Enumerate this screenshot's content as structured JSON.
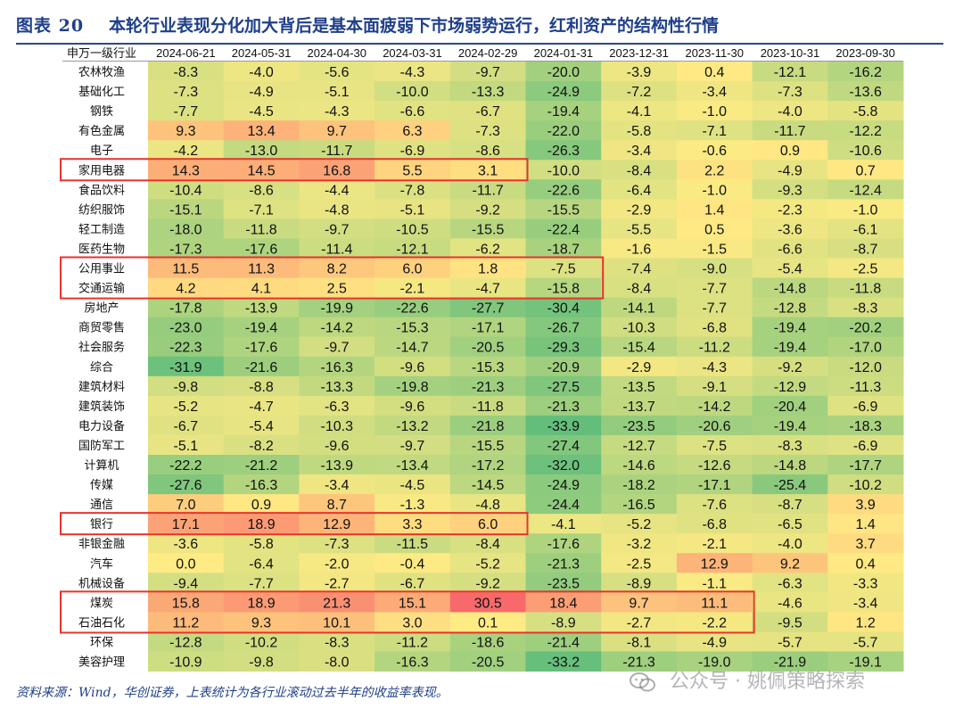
{
  "figure": {
    "label": "图表 20",
    "title": "本轮行业表现分化加大背后是基本面疲弱下市场弱势运行，红利资产的结构性行情"
  },
  "source_note": "资料来源：Wind，华创证券，上表统计为各行业滚动过去半年的收益率表现。",
  "watermark": {
    "text": "公众号 · 姚佩策略探索",
    "icon": "wechat-icon"
  },
  "chart_data": {
    "type": "table",
    "row_header_label": "申万一级行业",
    "columns": [
      "2024-06-21",
      "2024-05-31",
      "2024-04-30",
      "2024-03-31",
      "2024-02-29",
      "2024-01-31",
      "2023-12-31",
      "2023-11-30",
      "2023-10-31",
      "2023-09-30"
    ],
    "rows": [
      {
        "name": "农林牧渔",
        "values": [
          "-8.3",
          "-4.0",
          "-5.6",
          "-4.3",
          "-9.7",
          "-20.0",
          "-3.9",
          "0.4",
          "-12.1",
          "-16.2"
        ]
      },
      {
        "name": "基础化工",
        "values": [
          "-7.3",
          "-4.9",
          "-5.1",
          "-10.0",
          "-13.3",
          "-24.9",
          "-7.2",
          "-3.4",
          "-7.3",
          "-13.6"
        ]
      },
      {
        "name": "钢铁",
        "values": [
          "-7.7",
          "-4.5",
          "-4.3",
          "-6.6",
          "-6.7",
          "-19.4",
          "-4.1",
          "-1.0",
          "-4.0",
          "-5.8"
        ]
      },
      {
        "name": "有色金属",
        "values": [
          "9.3",
          "13.4",
          "9.7",
          "6.3",
          "-7.3",
          "-22.0",
          "-5.8",
          "-7.1",
          "-11.7",
          "-12.2"
        ]
      },
      {
        "name": "电子",
        "values": [
          "-4.2",
          "-13.0",
          "-11.7",
          "-6.9",
          "-8.6",
          "-26.3",
          "-3.4",
          "-0.6",
          "0.9",
          "-10.6"
        ]
      },
      {
        "name": "家用电器",
        "values": [
          "14.3",
          "14.5",
          "16.8",
          "5.5",
          "3.1",
          "-10.0",
          "-8.4",
          "2.2",
          "-4.9",
          "0.7"
        ]
      },
      {
        "name": "食品饮料",
        "values": [
          "-10.4",
          "-8.6",
          "-4.4",
          "-7.8",
          "-11.7",
          "-22.6",
          "-6.4",
          "-1.0",
          "-9.3",
          "-12.4"
        ]
      },
      {
        "name": "纺织服饰",
        "values": [
          "-15.1",
          "-7.1",
          "-4.8",
          "-5.1",
          "-9.2",
          "-15.5",
          "-2.9",
          "1.4",
          "-2.3",
          "-1.0"
        ]
      },
      {
        "name": "轻工制造",
        "values": [
          "-18.0",
          "-11.8",
          "-9.7",
          "-10.5",
          "-15.5",
          "-22.4",
          "-5.5",
          "0.5",
          "-3.6",
          "-6.1"
        ]
      },
      {
        "name": "医药生物",
        "values": [
          "-17.3",
          "-17.6",
          "-11.4",
          "-12.1",
          "-6.2",
          "-18.7",
          "-1.6",
          "-1.5",
          "-6.6",
          "-8.7"
        ]
      },
      {
        "name": "公用事业",
        "values": [
          "11.5",
          "11.3",
          "8.2",
          "6.0",
          "1.8",
          "-7.5",
          "-7.4",
          "-9.0",
          "-5.4",
          "-2.5"
        ]
      },
      {
        "name": "交通运输",
        "values": [
          "4.2",
          "4.1",
          "2.5",
          "-2.1",
          "-4.7",
          "-15.8",
          "-8.4",
          "-7.7",
          "-14.8",
          "-11.8"
        ]
      },
      {
        "name": "房地产",
        "values": [
          "-17.8",
          "-13.9",
          "-19.9",
          "-22.6",
          "-27.7",
          "-30.4",
          "-14.1",
          "-7.7",
          "-12.8",
          "-8.3"
        ]
      },
      {
        "name": "商贸零售",
        "values": [
          "-23.0",
          "-19.4",
          "-14.2",
          "-15.3",
          "-17.1",
          "-26.7",
          "-10.3",
          "-6.8",
          "-19.4",
          "-20.2"
        ]
      },
      {
        "name": "社会服务",
        "values": [
          "-22.3",
          "-17.6",
          "-9.7",
          "-14.7",
          "-20.5",
          "-29.3",
          "-15.4",
          "-11.2",
          "-19.4",
          "-17.0"
        ]
      },
      {
        "name": "综合",
        "values": [
          "-31.9",
          "-21.6",
          "-16.3",
          "-9.6",
          "-15.3",
          "-20.9",
          "-2.9",
          "-4.3",
          "-9.2",
          "-12.0"
        ]
      },
      {
        "name": "建筑材料",
        "values": [
          "-9.8",
          "-8.8",
          "-13.3",
          "-19.8",
          "-21.3",
          "-27.5",
          "-13.5",
          "-9.1",
          "-12.9",
          "-11.3"
        ]
      },
      {
        "name": "建筑装饰",
        "values": [
          "-5.2",
          "-4.7",
          "-6.3",
          "-9.6",
          "-11.8",
          "-21.3",
          "-13.7",
          "-14.2",
          "-20.4",
          "-6.9"
        ]
      },
      {
        "name": "电力设备",
        "values": [
          "-6.7",
          "-5.4",
          "-10.3",
          "-13.2",
          "-21.8",
          "-33.9",
          "-23.5",
          "-20.6",
          "-19.4",
          "-18.3"
        ]
      },
      {
        "name": "国防军工",
        "values": [
          "-5.1",
          "-8.2",
          "-9.6",
          "-9.7",
          "-15.5",
          "-27.4",
          "-12.7",
          "-7.5",
          "-8.3",
          "-6.9"
        ]
      },
      {
        "name": "计算机",
        "values": [
          "-22.2",
          "-21.2",
          "-13.9",
          "-13.4",
          "-17.2",
          "-32.0",
          "-14.6",
          "-12.6",
          "-14.8",
          "-17.7"
        ]
      },
      {
        "name": "传媒",
        "values": [
          "-27.6",
          "-16.3",
          "-3.4",
          "-4.5",
          "-14.5",
          "-24.9",
          "-18.2",
          "-17.1",
          "-25.4",
          "-10.2"
        ]
      },
      {
        "name": "通信",
        "values": [
          "7.0",
          "0.9",
          "8.7",
          "-1.3",
          "-4.8",
          "-24.4",
          "-16.5",
          "-7.6",
          "-8.7",
          "3.9"
        ]
      },
      {
        "name": "银行",
        "values": [
          "17.1",
          "18.9",
          "12.9",
          "3.3",
          "6.0",
          "-4.1",
          "-5.2",
          "-6.8",
          "-6.5",
          "1.4"
        ]
      },
      {
        "name": "非银金融",
        "values": [
          "-3.6",
          "-5.8",
          "-7.3",
          "-11.5",
          "-8.4",
          "-17.6",
          "-3.2",
          "-2.1",
          "-4.0",
          "3.7"
        ]
      },
      {
        "name": "汽车",
        "values": [
          "0.0",
          "-6.4",
          "-2.0",
          "-0.4",
          "-5.2",
          "-21.3",
          "-2.5",
          "12.9",
          "9.2",
          "0.4"
        ]
      },
      {
        "name": "机械设备",
        "values": [
          "-9.4",
          "-7.7",
          "-2.7",
          "-6.7",
          "-9.2",
          "-23.5",
          "-8.9",
          "-1.1",
          "-6.3",
          "-3.3"
        ]
      },
      {
        "name": "煤炭",
        "values": [
          "15.8",
          "18.9",
          "21.3",
          "15.1",
          "30.5",
          "18.4",
          "9.7",
          "11.1",
          "-4.6",
          "-3.4"
        ]
      },
      {
        "name": "石油石化",
        "values": [
          "11.2",
          "9.3",
          "10.1",
          "3.0",
          "0.1",
          "-8.9",
          "-2.7",
          "-2.2",
          "-9.5",
          "1.2"
        ]
      },
      {
        "name": "环保",
        "values": [
          "-12.8",
          "-10.2",
          "-8.3",
          "-11.2",
          "-18.6",
          "-21.4",
          "-8.1",
          "-4.9",
          "-5.7",
          "-5.7"
        ]
      },
      {
        "name": "美容护理",
        "values": [
          "-10.9",
          "-9.8",
          "-8.0",
          "-16.3",
          "-20.5",
          "-33.2",
          "-21.3",
          "-19.0",
          "-21.9",
          "-19.1"
        ]
      }
    ],
    "color_scale": {
      "low": "#63be7b",
      "mid": "#ffeb84",
      "high": "#f8696b",
      "min": -33.9,
      "mid_value": 0,
      "max": 30.5
    },
    "highlight_boxes": [
      {
        "rows": [
          "家用电器"
        ],
        "from_col": "2024-06-21",
        "to_col": "2024-02-29"
      },
      {
        "rows": [
          "公用事业",
          "交通运输"
        ],
        "from_col": "2024-06-21",
        "to_col": "2024-01-31"
      },
      {
        "rows": [
          "银行"
        ],
        "from_col": "2024-06-21",
        "to_col": "2024-02-29"
      },
      {
        "rows": [
          "煤炭",
          "石油石化"
        ],
        "from_col": "2024-06-21",
        "to_col": "2023-11-30"
      }
    ],
    "highlight_color": "#e8322c"
  }
}
